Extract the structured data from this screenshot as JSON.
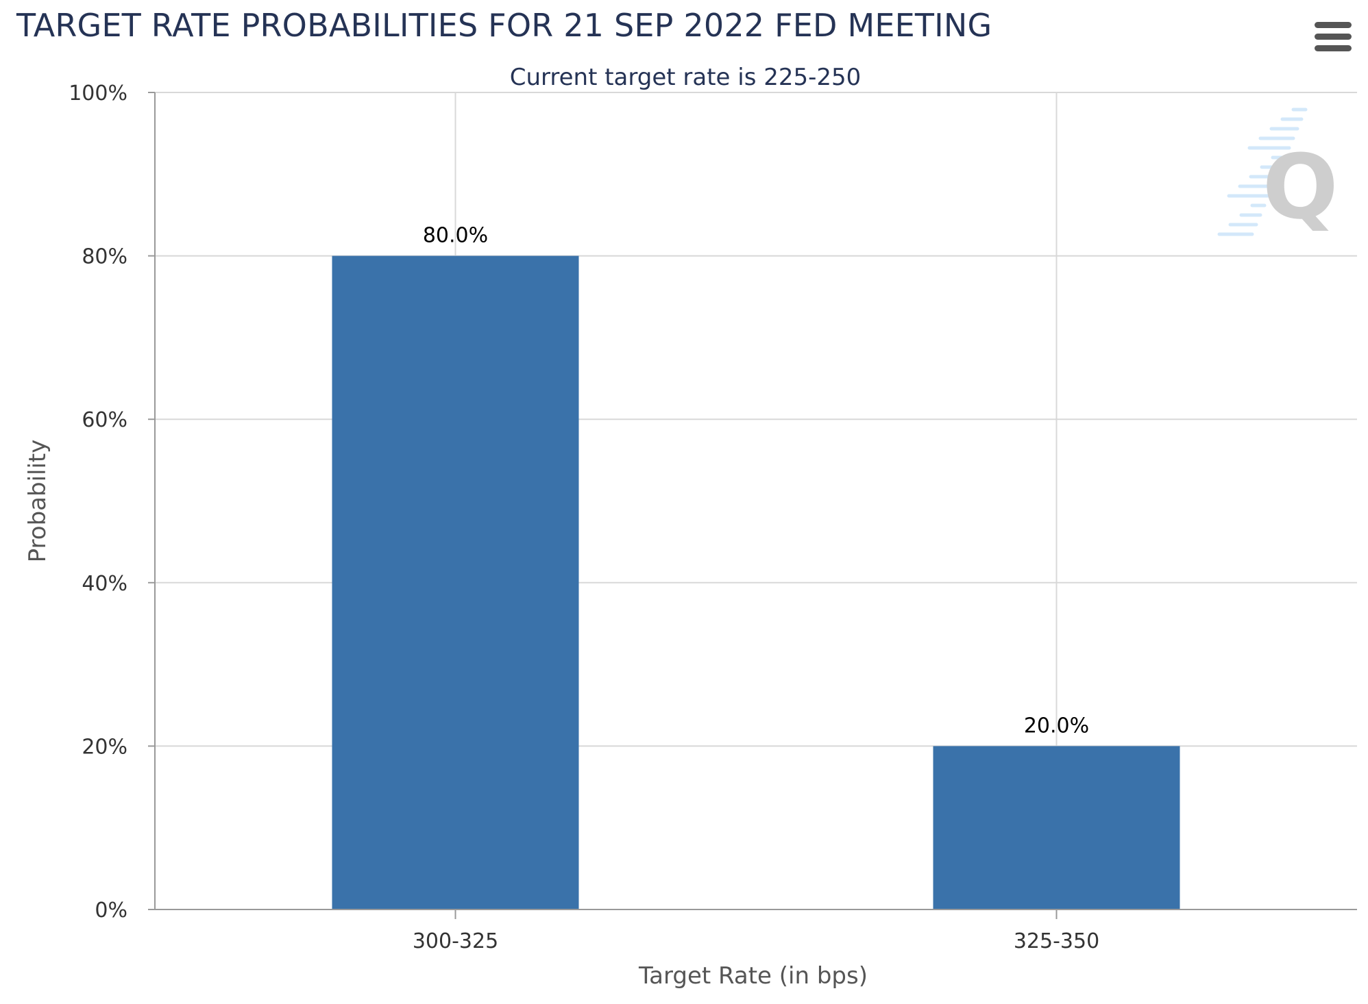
{
  "title": "TARGET RATE PROBABILITIES FOR 21 SEP 2022 FED MEETING",
  "menu": {
    "icon": "hamburger-menu-icon"
  },
  "watermark": {
    "letter": "Q",
    "icon": "logo-watermark-icon"
  },
  "colors": {
    "bar": "#3a72aa",
    "title": "#253355",
    "grid": "#d8d8d8",
    "axis": "#999999"
  },
  "chart_data": {
    "type": "bar",
    "title": "TARGET RATE PROBABILITIES FOR 21 SEP 2022 FED MEETING",
    "subtitle": "Current target rate is 225-250",
    "categories": [
      "300-325",
      "325-350"
    ],
    "values": [
      80.0,
      20.0
    ],
    "data_labels": [
      "80.0%",
      "20.0%"
    ],
    "xlabel": "Target Rate (in bps)",
    "ylabel": "Probability",
    "ylim": [
      0,
      100
    ],
    "yticks": [
      0,
      20,
      40,
      60,
      80,
      100
    ],
    "ytick_labels": [
      "0%",
      "20%",
      "40%",
      "60%",
      "80%",
      "100%"
    ],
    "grid": true,
    "legend": "none"
  }
}
